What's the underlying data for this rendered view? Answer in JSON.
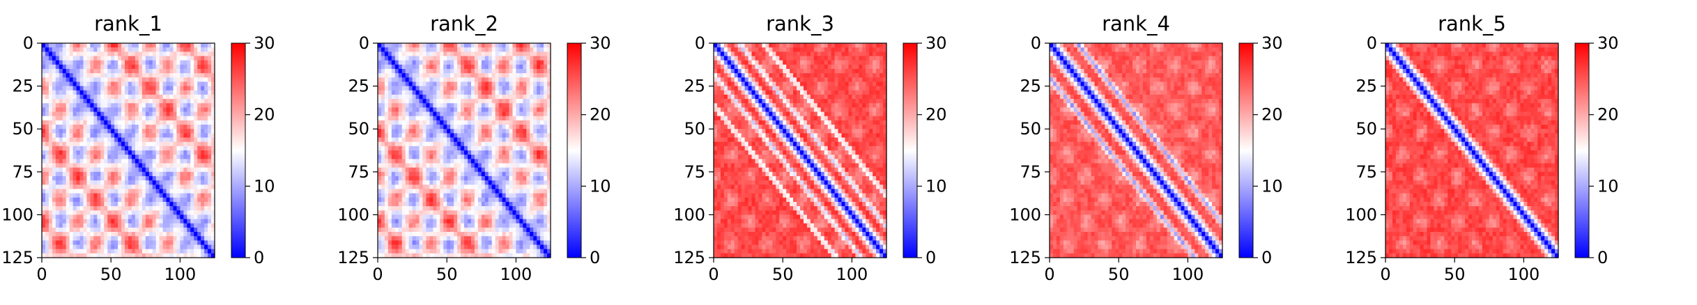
{
  "colors": {
    "low": "#0000ff",
    "mid": "#ffffff",
    "high": "#ff0000",
    "axis": "#000000"
  },
  "chart_data": [
    {
      "type": "heatmap",
      "title": "rank_1",
      "xlabel": "",
      "ylabel": "",
      "xlim": [
        0,
        125
      ],
      "ylim": [
        125,
        0
      ],
      "xticks": [
        0,
        50,
        100
      ],
      "yticks": [
        0,
        25,
        50,
        75,
        100,
        125
      ],
      "colorbar": {
        "min": 0,
        "max": 30,
        "ticks": [
          0,
          10,
          20,
          30
        ],
        "colormap": "bwr"
      },
      "pattern": {
        "diagonal_distance": 0,
        "diagonal_width": 4,
        "offdiag_period": 26,
        "offdiag_band": 0.5
      }
    },
    {
      "type": "heatmap",
      "title": "rank_2",
      "xlabel": "",
      "ylabel": "",
      "xlim": [
        0,
        125
      ],
      "ylim": [
        125,
        0
      ],
      "xticks": [
        0,
        50,
        100
      ],
      "yticks": [
        0,
        25,
        50,
        75,
        100,
        125
      ],
      "colorbar": {
        "min": 0,
        "max": 30,
        "ticks": [
          0,
          10,
          20,
          30
        ],
        "colormap": "bwr"
      },
      "pattern": {
        "diagonal_distance": 0,
        "diagonal_width": 4,
        "offdiag_period": 26,
        "offdiag_band": 0.45
      }
    },
    {
      "type": "heatmap",
      "title": "rank_3",
      "xlabel": "",
      "ylabel": "",
      "xlim": [
        0,
        125
      ],
      "ylim": [
        125,
        0
      ],
      "xticks": [
        0,
        50,
        100
      ],
      "yticks": [
        0,
        25,
        50,
        75,
        100,
        125
      ],
      "colorbar": {
        "min": 0,
        "max": 30,
        "ticks": [
          0,
          10,
          20,
          30
        ],
        "colormap": "bwr"
      },
      "pattern": {
        "diagonal_distance": 0,
        "diagonal_width": 3,
        "parallel_band_offsets": [
          18,
          36
        ],
        "background": 26
      }
    },
    {
      "type": "heatmap",
      "title": "rank_4",
      "xlabel": "",
      "ylabel": "",
      "xlim": [
        0,
        125
      ],
      "ylim": [
        125,
        0
      ],
      "xticks": [
        0,
        50,
        100
      ],
      "yticks": [
        0,
        25,
        50,
        75,
        100,
        125
      ],
      "colorbar": {
        "min": 0,
        "max": 30,
        "ticks": [
          0,
          10,
          20,
          30
        ],
        "colormap": "bwr"
      },
      "pattern": {
        "diagonal_distance": 0,
        "diagonal_width": 3,
        "parallel_band_offsets": [
          20
        ],
        "background": 25
      }
    },
    {
      "type": "heatmap",
      "title": "rank_5",
      "xlabel": "",
      "ylabel": "",
      "xlim": [
        0,
        125
      ],
      "ylim": [
        125,
        0
      ],
      "xticks": [
        0,
        50,
        100
      ],
      "yticks": [
        0,
        25,
        50,
        75,
        100,
        125
      ],
      "colorbar": {
        "min": 0,
        "max": 30,
        "ticks": [
          0,
          10,
          20,
          30
        ],
        "colormap": "bwr"
      },
      "pattern": {
        "diagonal_distance": 0,
        "diagonal_width": 3,
        "parallel_band_offsets": [],
        "background": 26
      }
    }
  ]
}
